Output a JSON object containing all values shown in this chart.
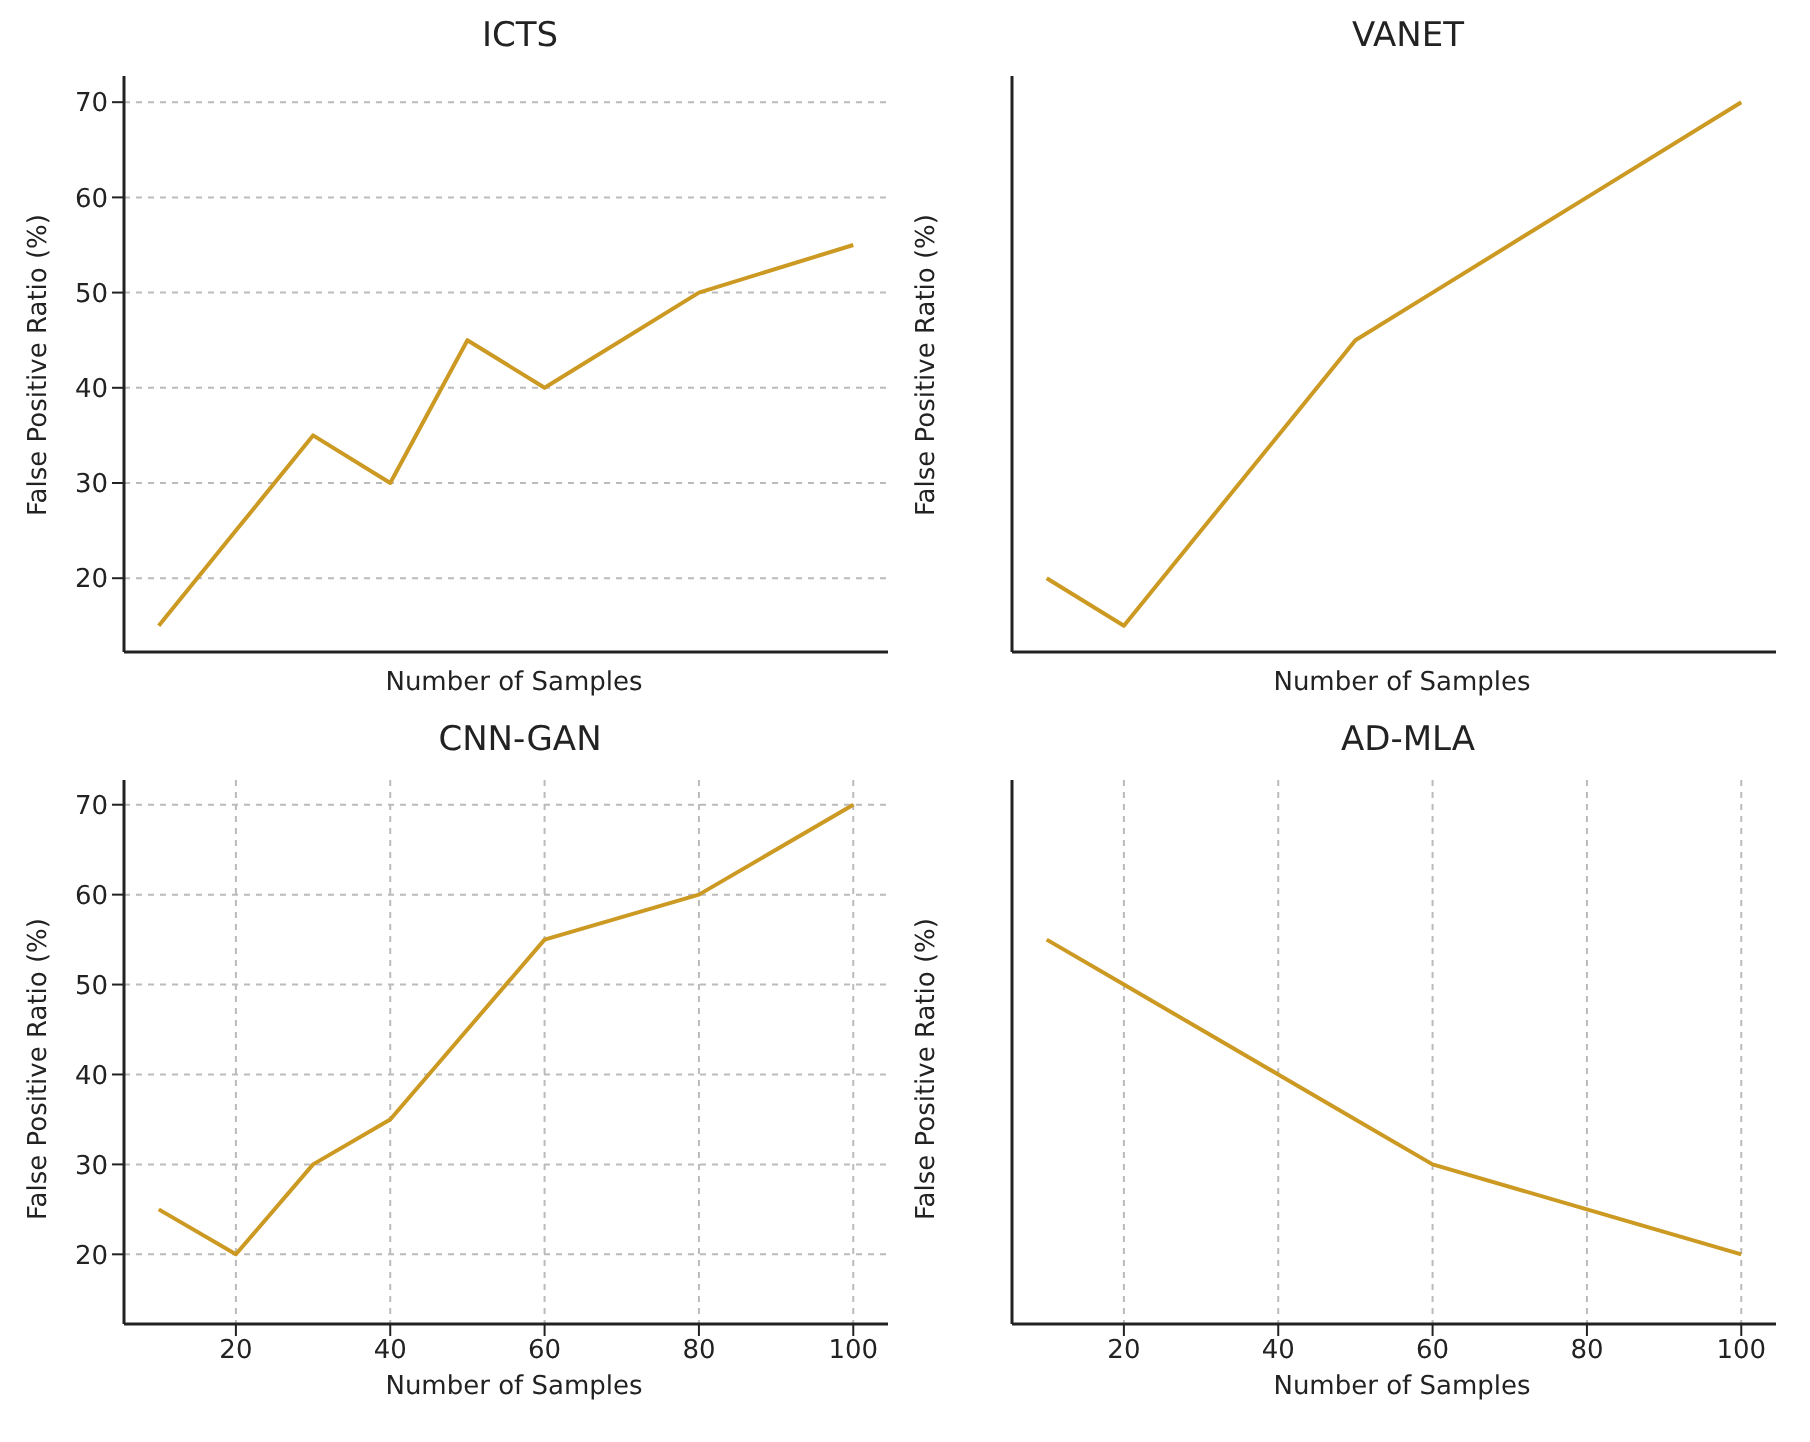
{
  "chart_data": [
    {
      "type": "line",
      "title": "ICTS",
      "xlabel": "Number of Samples",
      "ylabel": "False Positive Ratio (%)",
      "x": [
        10,
        20,
        30,
        40,
        50,
        60,
        80,
        100
      ],
      "series": [
        {
          "color": "#cc9922",
          "values": [
            15,
            25,
            35,
            30,
            45,
            40,
            50,
            55
          ]
        }
      ],
      "xlim": [
        5.5,
        104.5
      ],
      "xticks": [
        20,
        40,
        60,
        80,
        100
      ],
      "ylim": [
        12.25,
        72.75
      ],
      "yticks": [
        20,
        30,
        40,
        50,
        60,
        70
      ],
      "grid": true,
      "legend": false,
      "tick_labels": "y"
    },
    {
      "type": "line",
      "title": "VANET",
      "xlabel": "Number of Samples",
      "ylabel": "False Positive Ratio (%)",
      "x": [
        10,
        20,
        30,
        40,
        50,
        60,
        80,
        100
      ],
      "series": [
        {
          "color": "#cc9922",
          "values": [
            20,
            15,
            25,
            35,
            45,
            50,
            60,
            70
          ]
        }
      ],
      "xlim": [
        5.5,
        104.5
      ],
      "xticks": [
        20,
        40,
        60,
        80,
        100
      ],
      "ylim": [
        12.25,
        72.75
      ],
      "yticks": [
        20,
        30,
        40,
        50,
        60,
        70
      ],
      "grid": true,
      "legend": false,
      "tick_labels": false
    },
    {
      "type": "line",
      "title": "CNN-GAN",
      "xlabel": "Number of Samples",
      "ylabel": "False Positive Ratio (%)",
      "x": [
        10,
        20,
        30,
        40,
        50,
        60,
        80,
        100
      ],
      "series": [
        {
          "color": "#cc9922",
          "values": [
            25,
            20,
            30,
            35,
            45,
            55,
            60,
            70
          ]
        }
      ],
      "xlim": [
        5.5,
        104.5
      ],
      "xticks": [
        20,
        40,
        60,
        80,
        100
      ],
      "ylim": [
        12.25,
        72.75
      ],
      "yticks": [
        20,
        30,
        40,
        50,
        60,
        70
      ],
      "grid": true,
      "legend": false
    },
    {
      "type": "line",
      "title": "AD-MLA",
      "xlabel": "Number of Samples",
      "ylabel": "False Positive Ratio (%)",
      "x": [
        10,
        20,
        30,
        40,
        50,
        60,
        80,
        100
      ],
      "series": [
        {
          "color": "#cc9922",
          "values": [
            55,
            50,
            45,
            40,
            35,
            30,
            25,
            20
          ]
        }
      ],
      "xlim": [
        5.5,
        104.5
      ],
      "xticks": [
        20,
        40,
        60,
        80,
        100
      ],
      "ylim": [
        12.25,
        72.75
      ],
      "yticks": [
        20,
        30,
        40,
        50,
        60,
        70
      ],
      "grid": true,
      "legend": false,
      "tick_labels": "x"
    }
  ]
}
